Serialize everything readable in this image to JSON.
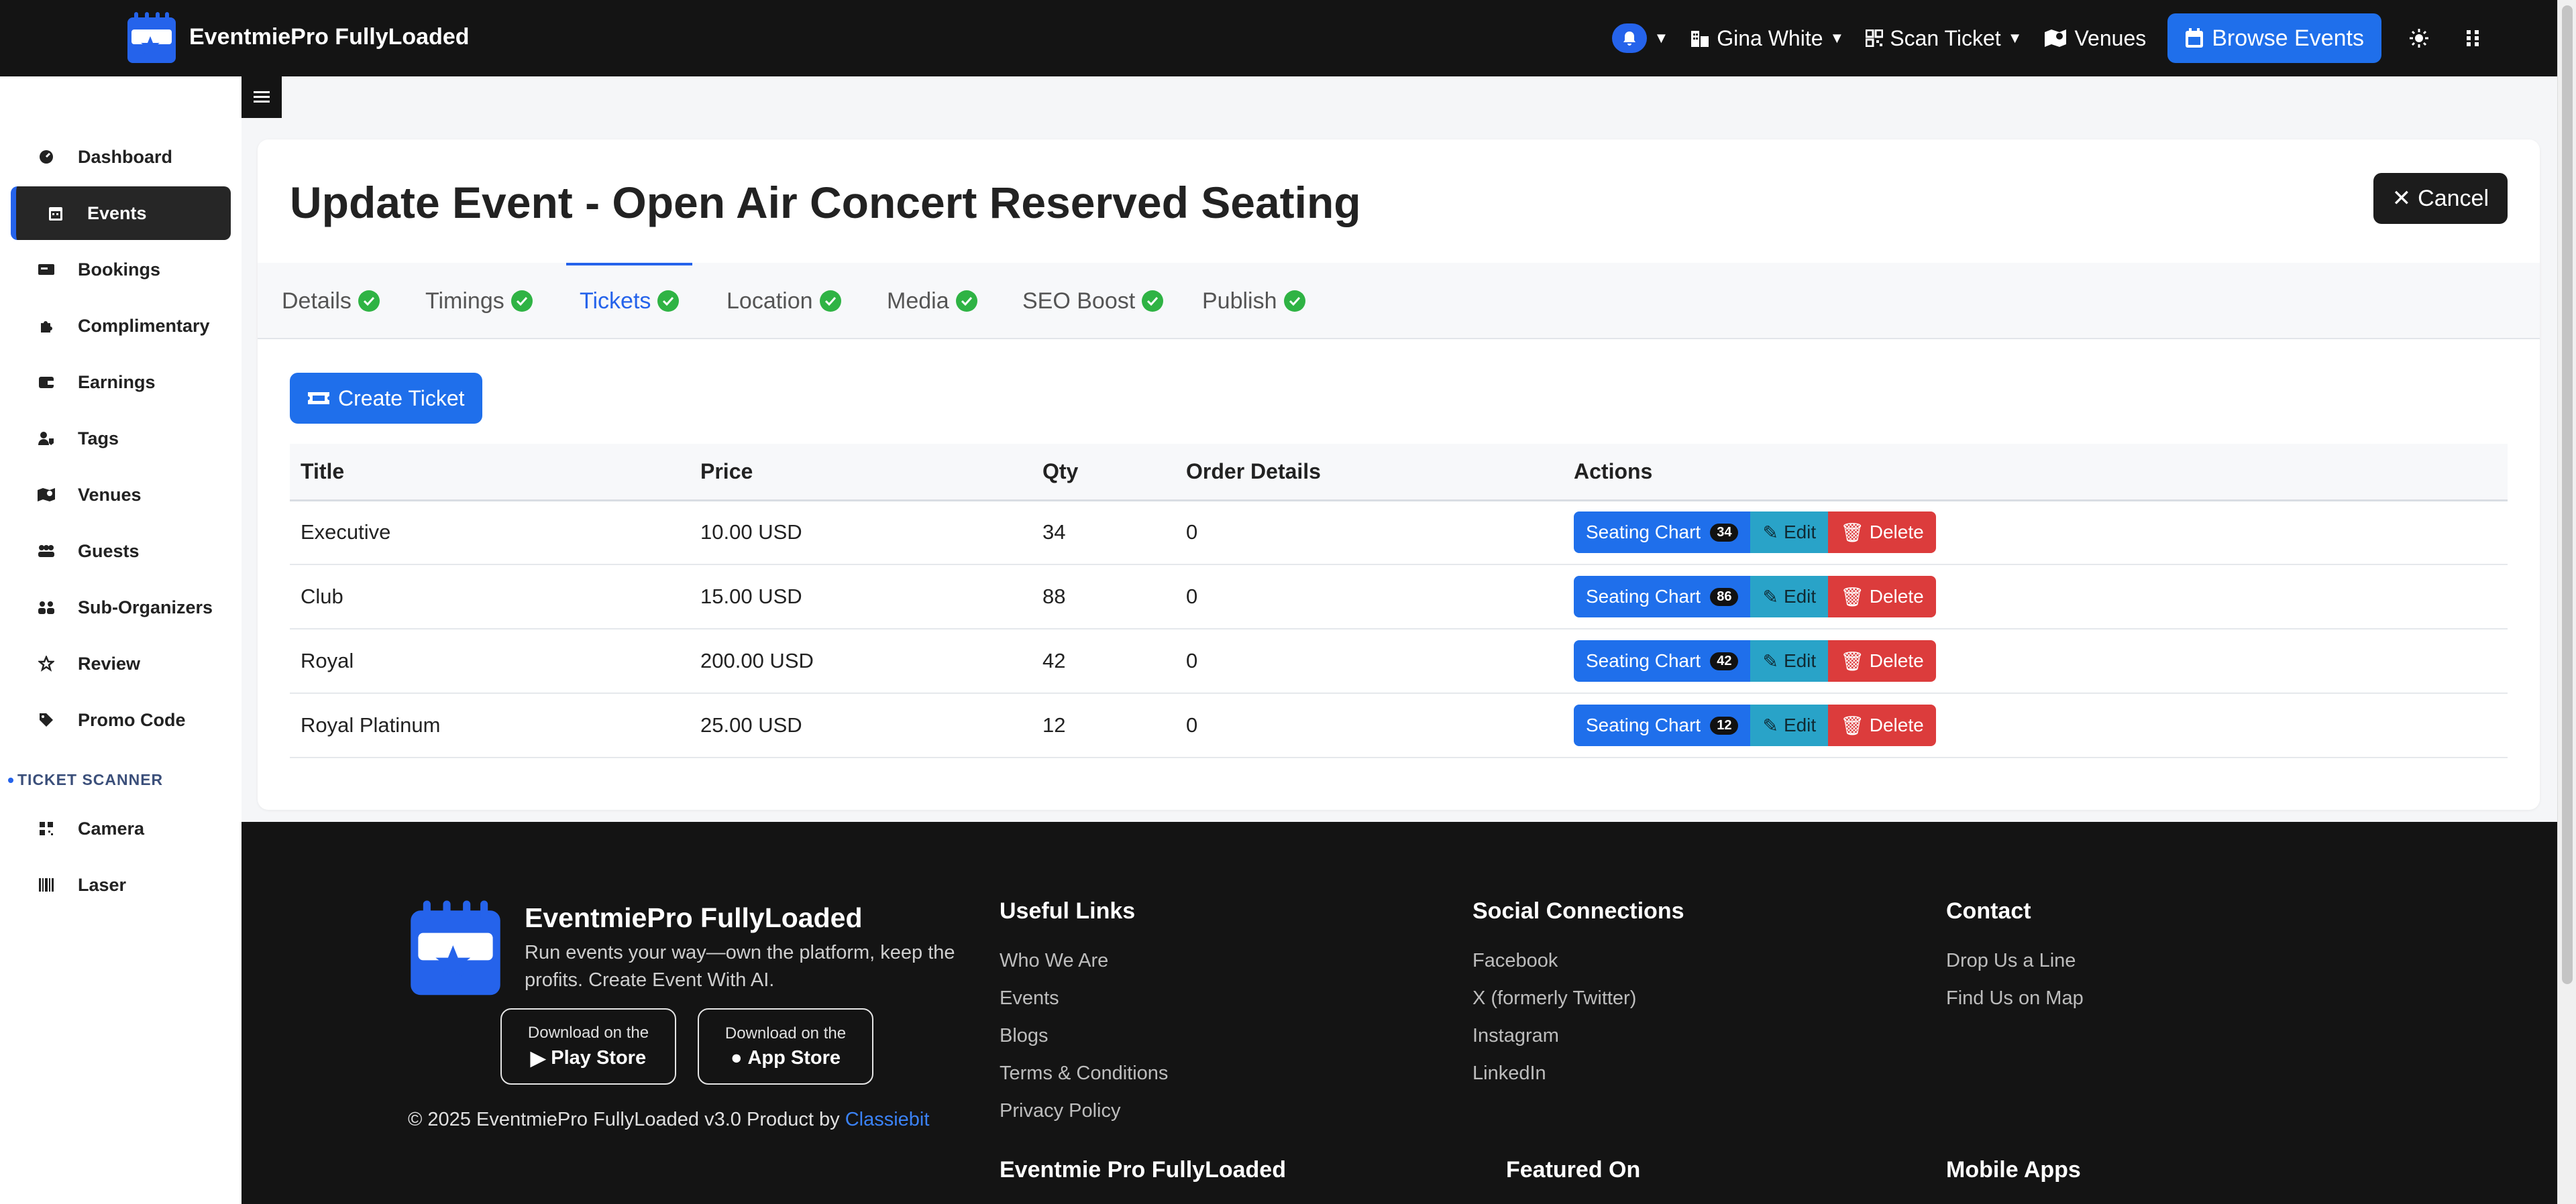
{
  "app": {
    "name": "EventmiePro FullyLoaded"
  },
  "topnav": {
    "user": "Gina White",
    "scan": "Scan Ticket",
    "venues": "Venues",
    "browse": "Browse Events",
    "icons": [
      "bell-icon",
      "building-icon",
      "qrcode-icon",
      "map-icon",
      "calendar-icon",
      "sun-icon",
      "grid-icon"
    ]
  },
  "sidebar": {
    "items": [
      {
        "label": "Dashboard",
        "icon": "dashboard-icon"
      },
      {
        "label": "Events",
        "icon": "calendar-icon",
        "active": true
      },
      {
        "label": "Bookings",
        "icon": "ticket-icon"
      },
      {
        "label": "Complimentary",
        "icon": "puzzle-icon"
      },
      {
        "label": "Earnings",
        "icon": "wallet-icon"
      },
      {
        "label": "Tags",
        "icon": "user-tag-icon"
      },
      {
        "label": "Venues",
        "icon": "map-icon"
      },
      {
        "label": "Guests",
        "icon": "people-icon"
      },
      {
        "label": "Sub-Organizers",
        "icon": "users-icon"
      },
      {
        "label": "Review",
        "icon": "star-icon"
      },
      {
        "label": "Promo Code",
        "icon": "tag-icon"
      }
    ],
    "section": "TICKET SCANNER",
    "scanner_items": [
      {
        "label": "Camera",
        "icon": "qrcode-icon"
      },
      {
        "label": "Laser",
        "icon": "barcode-icon"
      }
    ]
  },
  "page": {
    "title": "Update Event - Open Air Concert Reserved Seating",
    "cancel": "Cancel",
    "tabs": [
      {
        "label": "Details"
      },
      {
        "label": "Timings"
      },
      {
        "label": "Tickets",
        "active": true
      },
      {
        "label": "Location"
      },
      {
        "label": "Media"
      },
      {
        "label": "SEO Boost"
      },
      {
        "label": "Publish"
      }
    ],
    "create_ticket": "Create Ticket",
    "table": {
      "headers": [
        "Title",
        "Price",
        "Qty",
        "Order Details",
        "Actions"
      ],
      "rows": [
        {
          "title": "Executive",
          "price": "10.00 USD",
          "qty": "34",
          "orders": "0",
          "seats": "34"
        },
        {
          "title": "Club",
          "price": "15.00 USD",
          "qty": "88",
          "orders": "0",
          "seats": "86"
        },
        {
          "title": "Royal",
          "price": "200.00 USD",
          "qty": "42",
          "orders": "0",
          "seats": "42"
        },
        {
          "title": "Royal Platinum",
          "price": "25.00 USD",
          "qty": "12",
          "orders": "0",
          "seats": "12"
        }
      ],
      "actions": {
        "seating": "Seating Chart",
        "edit": "Edit",
        "delete": "Delete"
      }
    }
  },
  "footer": {
    "brand": "EventmiePro FullyLoaded",
    "tagline": "Run events your way—own the platform, keep the profits. Create Event With AI.",
    "store_small": "Download on the",
    "play_store": "Play Store",
    "app_store": "App Store",
    "copyright": "© 2025 EventmiePro FullyLoaded v3.0 Product by",
    "copyright_link": "Classiebit",
    "useful_links": {
      "title": "Useful Links",
      "items": [
        "Who We Are",
        "Events",
        "Blogs",
        "Terms & Conditions",
        "Privacy Policy"
      ]
    },
    "social": {
      "title": "Social Connections",
      "items": [
        "Facebook",
        "X (formerly Twitter)",
        "Instagram",
        "LinkedIn"
      ]
    },
    "contact": {
      "title": "Contact",
      "items": [
        "Drop Us a Line",
        "Find Us on Map"
      ]
    },
    "bottom_headings": [
      "Eventmie Pro FullyLoaded",
      "Featured On",
      "Mobile Apps"
    ]
  },
  "colors": {
    "accent": "#1f6feb",
    "dark": "#141414",
    "success": "#2fb344",
    "danger": "#dc3c3c",
    "info": "#29a3c8"
  }
}
